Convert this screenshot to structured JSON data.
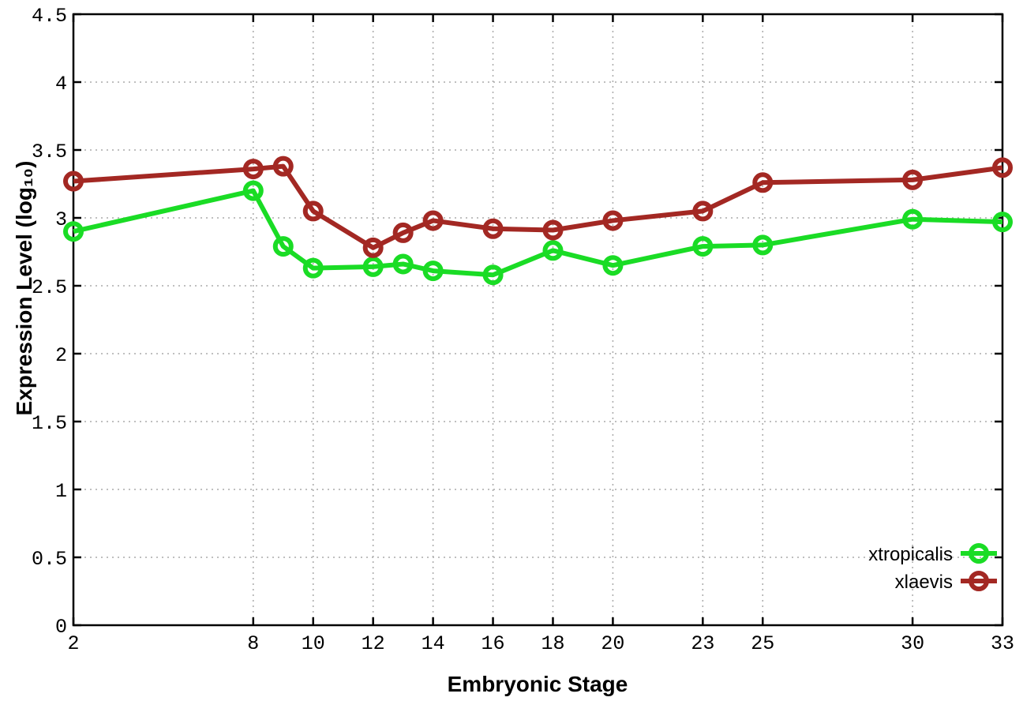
{
  "chart": {
    "title": "",
    "x_axis_title": "Embryonic Stage",
    "y_axis_title_display": "Expression Level (log₁₀)"
  },
  "chart_data": {
    "type": "line",
    "x": [
      2,
      8,
      9,
      10,
      12,
      13,
      14,
      16,
      18,
      20,
      23,
      25,
      30,
      33
    ],
    "series": [
      {
        "name": "xtropicalis",
        "color": "#1adc25",
        "values": [
          2.9,
          3.2,
          2.79,
          2.63,
          2.64,
          2.66,
          2.61,
          2.58,
          2.76,
          2.65,
          2.79,
          2.8,
          2.99,
          2.97
        ]
      },
      {
        "name": "xlaevis",
        "color": "#a32823",
        "values": [
          3.27,
          3.36,
          3.38,
          3.05,
          2.78,
          2.89,
          2.98,
          2.92,
          2.91,
          2.98,
          3.05,
          3.26,
          3.28,
          3.37
        ]
      }
    ],
    "title": "",
    "xlabel": "Embryonic Stage",
    "ylabel": "Expression Level (log10)",
    "xlim": [
      2,
      33
    ],
    "ylim": [
      0,
      4.5
    ],
    "x_ticks": [
      2,
      8,
      10,
      12,
      14,
      16,
      18,
      20,
      23,
      25,
      30,
      33
    ],
    "y_ticks": [
      0,
      0.5,
      1,
      1.5,
      2,
      2.5,
      3,
      3.5,
      4,
      4.5
    ],
    "grid": true,
    "grid_style": "dotted",
    "grid_color": "#aaaaaa",
    "axis_color": "#000000",
    "background": "#ffffff",
    "marker": "open-circle",
    "legend_position": "inside-bottom-right",
    "legend_entries": [
      "xtropicalis",
      "xlaevis"
    ]
  }
}
